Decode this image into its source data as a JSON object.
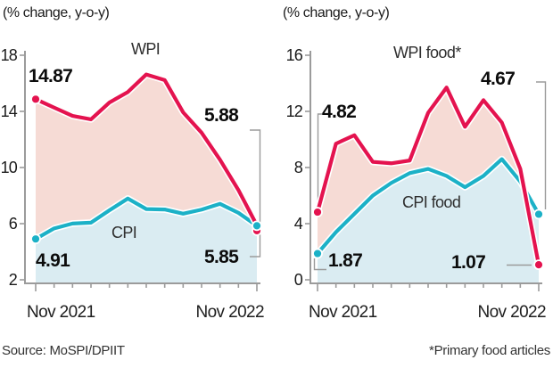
{
  "figure": {
    "source_note": "Source: MoSPI/DPIIT",
    "footnote": "*Primary food articles"
  },
  "chart_data": [
    {
      "type": "line",
      "title": "(% change, y-o-y)",
      "x_axis": {
        "start_label": "Nov 2021",
        "end_label": "Nov 2022",
        "points": 13
      },
      "ylim": [
        2,
        18
      ],
      "yticks": [
        2,
        6,
        10,
        14,
        18
      ],
      "grid": false,
      "legend_position": "inline",
      "series": [
        {
          "name": "WPI",
          "color": "#e4134f",
          "area_color": "#f6dbd5",
          "values": [
            14.87,
            14.27,
            13.68,
            13.43,
            14.63,
            15.38,
            16.63,
            16.23,
            13.93,
            12.48,
            10.55,
            8.39,
            5.88
          ],
          "start_label": "14.87",
          "end_label": "5.88"
        },
        {
          "name": "CPI",
          "color": "#1cb1c7",
          "area_color": "#daecf2",
          "values": [
            4.91,
            5.66,
            6.01,
            6.07,
            6.95,
            7.79,
            7.04,
            7.01,
            6.71,
            7.0,
            7.41,
            6.77,
            5.85
          ],
          "start_label": "4.91",
          "end_label": "5.85"
        }
      ]
    },
    {
      "type": "line",
      "title": "(% change, y-o-y)",
      "x_axis": {
        "start_label": "Nov 2021",
        "end_label": "Nov 2022",
        "points": 13
      },
      "ylim": [
        0,
        16
      ],
      "yticks": [
        0,
        4,
        8,
        12,
        16
      ],
      "grid": false,
      "legend_position": "inline",
      "series": [
        {
          "name": "WPI food*",
          "color": "#e4134f",
          "area_color": "#f6dbd5",
          "values": [
            4.82,
            9.7,
            10.3,
            8.4,
            8.3,
            8.5,
            11.9,
            13.7,
            10.9,
            12.8,
            11.2,
            7.9,
            1.07
          ],
          "start_label": "4.82",
          "end_label": "1.07"
        },
        {
          "name": "CPI food",
          "color": "#1cb1c7",
          "area_color": "#daecf2",
          "values": [
            1.87,
            3.4,
            4.7,
            6.0,
            6.9,
            7.6,
            7.9,
            7.4,
            6.6,
            7.4,
            8.6,
            7.0,
            4.67
          ],
          "start_label": "1.87",
          "end_label": "4.67"
        }
      ]
    }
  ]
}
